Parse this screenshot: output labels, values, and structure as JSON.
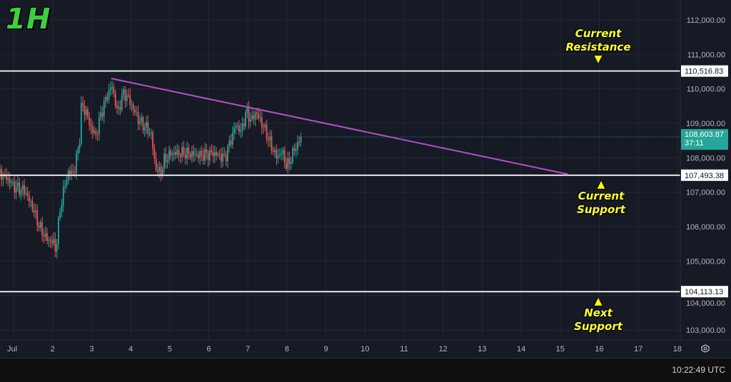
{
  "timeframe_label": "1H",
  "clock": "10:22:49 UTC",
  "annotations": {
    "resistance": "Current\nResistance",
    "support": "Current\nSupport",
    "next_support": "Next\nSupport"
  },
  "colors": {
    "background": "#161a25",
    "up": "#26a69a",
    "down": "#ef5350",
    "trendline": "#b44fc9",
    "level_line": "#e6e6e6",
    "annotation": "#ffff33",
    "timeframe": "#3ecf3e"
  },
  "chart_data": {
    "type": "candlestick",
    "ylim": [
      102600,
      112500
    ],
    "y_ticks": [
      "112,000.00",
      "111,000.00",
      "110,000.00",
      "109,000.00",
      "108,000.00",
      "107,000.00",
      "106,000.00",
      "105,000.00",
      "104,000.00",
      "103,000.00"
    ],
    "y_tick_values": [
      112000,
      111000,
      110000,
      109000,
      108000,
      107000,
      106000,
      105000,
      104000,
      103000
    ],
    "x_ticks": [
      "Jul",
      "2",
      "3",
      "4",
      "5",
      "6",
      "7",
      "8",
      "9",
      "10",
      "11",
      "12",
      "13",
      "14",
      "15",
      "16",
      "17",
      "18"
    ],
    "x_tick_days": [
      1,
      2,
      3,
      4,
      5,
      6,
      7,
      8,
      9,
      10,
      11,
      12,
      13,
      14,
      15,
      16,
      17,
      18
    ],
    "grid": true,
    "price_path": {
      "days": [
        0.65,
        0.84,
        1.02,
        1.29,
        1.48,
        1.66,
        1.84,
        2.02,
        2.08,
        2.2,
        2.38,
        2.56,
        2.7,
        2.74,
        2.87,
        2.98,
        3.11,
        3.24,
        3.39,
        3.52,
        3.67,
        3.79,
        3.91,
        4.04,
        4.22,
        4.41,
        4.53,
        4.63,
        4.76,
        4.86,
        5.04,
        5.41,
        5.77,
        6.14,
        6.41,
        6.54,
        6.69,
        6.83,
        6.96,
        7.09,
        7.2,
        7.33,
        7.46,
        7.6,
        7.75,
        7.87,
        8.0,
        8.19,
        8.38
      ],
      "close": [
        107550,
        107400,
        107150,
        107040,
        106580,
        106000,
        105650,
        105540,
        105300,
        106580,
        107550,
        107600,
        108650,
        109580,
        109270,
        108850,
        108650,
        109270,
        109790,
        110100,
        109270,
        109850,
        109790,
        109480,
        109060,
        108850,
        108650,
        107720,
        107550,
        107920,
        108130,
        108130,
        108070,
        108130,
        107990,
        108440,
        108960,
        108750,
        109370,
        109060,
        109330,
        109060,
        108750,
        108340,
        107990,
        108200,
        107720,
        108230,
        108603.87
      ]
    },
    "horizontal_levels": [
      {
        "label": "110,516.83",
        "value": 110516.83
      },
      {
        "label": "107,493.38",
        "value": 107493.38
      },
      {
        "label": "104,113.13",
        "value": 104113.13
      }
    ],
    "trendline": {
      "from": {
        "day": 3.5,
        "price": 110300
      },
      "to": {
        "day": 15.2,
        "price": 107520
      }
    },
    "last_price": {
      "label": "108,603.87",
      "countdown": "37:11",
      "value": 108603.87
    }
  }
}
